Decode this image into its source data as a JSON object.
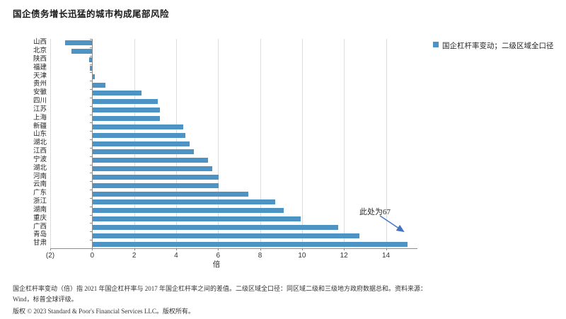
{
  "page": {
    "title": "国企债务增长迅猛的城市构成尾部风险"
  },
  "legend": {
    "label": "国企杠杆率变动；二级区域全口径",
    "marker_color": "#4D94C4"
  },
  "chart_data": {
    "type": "bar",
    "orientation": "horizontal",
    "title": "国企债务增长迅猛的城市构成尾部风险",
    "series_name": "国企杠杆率变动；二级区域全口径",
    "categories": [
      "山西",
      "北京",
      "陕西",
      "福建",
      "天津",
      "贵州",
      "安徽",
      "四川",
      "江苏",
      "上海",
      "新疆",
      "山东",
      "湖北",
      "江西",
      "宁波",
      "湖北",
      "河南",
      "云南",
      "广东",
      "浙江",
      "湖南",
      "重庆",
      "广西",
      "青岛",
      "甘肃"
    ],
    "values": [
      -1.3,
      -1.0,
      -0.15,
      -0.1,
      0.1,
      0.6,
      2.3,
      3.1,
      3.2,
      3.2,
      4.3,
      4.4,
      4.6,
      4.8,
      5.5,
      5.7,
      6.0,
      6.0,
      7.4,
      8.7,
      9.1,
      9.9,
      11.7,
      12.7,
      15.0
    ],
    "xlabel": "倍",
    "xlim": [
      -2,
      15.5
    ],
    "x_ticks": [
      {
        "value": -2,
        "label": "(2)"
      },
      {
        "value": 0,
        "label": "0"
      },
      {
        "value": 2,
        "label": "2"
      },
      {
        "value": 4,
        "label": "4"
      },
      {
        "value": 6,
        "label": "6"
      },
      {
        "value": 8,
        "label": "8"
      },
      {
        "value": 10,
        "label": "10"
      },
      {
        "value": 12,
        "label": "12"
      },
      {
        "value": 14,
        "label": "14"
      }
    ],
    "gridline_values": [
      -2,
      2,
      4,
      6,
      8,
      10,
      12,
      14
    ],
    "grid": true,
    "legend_position": "right",
    "bar_color": "#4D94C4",
    "annotation": {
      "text": "此处为67",
      "category": "甘肃",
      "actual_value": 67,
      "displayed_value": 15,
      "arrow_color": "#4472C4"
    }
  },
  "colors": {
    "bar": "#4D94C4",
    "arrow": "#4472C4",
    "gridline": "#DCDCDC",
    "axis": "#8C8C8C"
  },
  "footnote": {
    "line1": "国企杠杆率变动（倍）指 2021 年国企杠杆率与 2017 年国企杠杆率之间的差值。二级区域全口径：同区域二级和三级地方政府数据总和。资料来源：",
    "line2": "Wind，标普全球评级。",
    "copyright": "版权 © 2023 Standard & Poor's Financial Services LLC。版权所有。"
  }
}
